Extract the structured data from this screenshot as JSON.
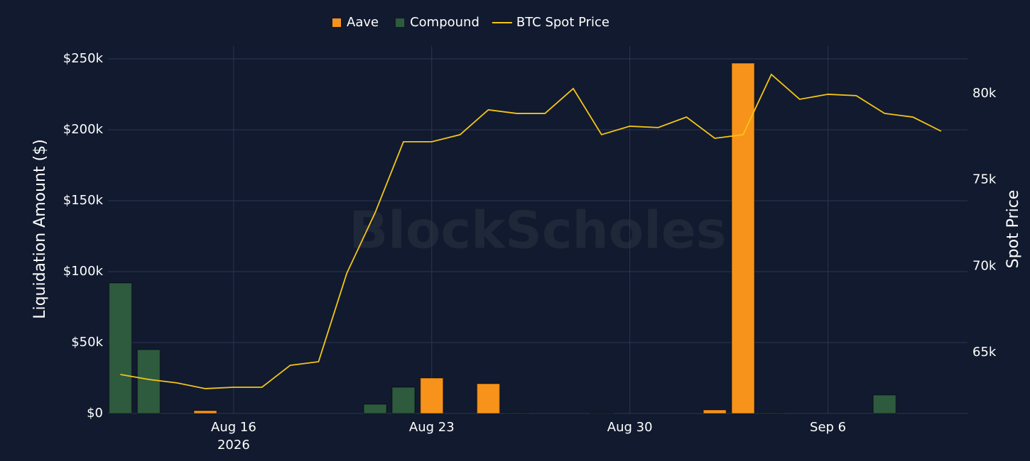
{
  "chart_data": {
    "type": "bar",
    "watermark": "BlockScholes",
    "y_label": "Liquidation Amount ($)",
    "y2_label": "Spot Price",
    "categories": [
      "2026-08-12",
      "2026-08-13",
      "2026-08-14",
      "2026-08-15",
      "2026-08-16",
      "2026-08-17",
      "2026-08-18",
      "2026-08-19",
      "2026-08-20",
      "2026-08-21",
      "2026-08-22",
      "2026-08-23",
      "2026-08-24",
      "2026-08-25",
      "2026-08-26",
      "2026-08-27",
      "2026-08-28",
      "2026-08-29",
      "2026-08-30",
      "2026-08-31",
      "2026-09-01",
      "2026-09-02",
      "2026-09-03",
      "2026-09-04",
      "2026-09-05",
      "2026-09-06",
      "2026-09-07",
      "2026-09-08"
    ],
    "series": [
      {
        "name": "Aave",
        "color": "#f7931a",
        "values": [
          0,
          0,
          0,
          2000,
          0,
          0,
          0,
          0,
          0,
          0,
          0,
          25000,
          0,
          21000,
          0,
          0,
          0,
          0,
          0,
          0,
          0,
          2500,
          247000,
          0,
          0,
          0,
          0,
          0
        ]
      },
      {
        "name": "Compound",
        "color": "#2e5b3e",
        "values": [
          92000,
          45000,
          0,
          0,
          0,
          0,
          0,
          0,
          0,
          6500,
          18500,
          0,
          0,
          0,
          500,
          0,
          0,
          300,
          0,
          0,
          0,
          0,
          0,
          500,
          0,
          0,
          0,
          13000
        ]
      },
      {
        "name": "BTC Spot Price",
        "color": "#f5c518",
        "type": "line",
        "axis": "y2",
        "x": [
          "2026-08-12",
          "2026-08-13",
          "2026-08-14",
          "2026-08-15",
          "2026-08-16",
          "2026-08-17",
          "2026-08-18",
          "2026-08-19",
          "2026-08-20",
          "2026-08-21",
          "2026-08-22",
          "2026-08-23",
          "2026-08-24",
          "2026-08-25",
          "2026-08-26",
          "2026-08-27",
          "2026-08-28",
          "2026-08-29",
          "2026-08-30",
          "2026-08-31",
          "2026-09-01",
          "2026-09-02",
          "2026-09-03",
          "2026-09-04",
          "2026-09-05",
          "2026-09-06",
          "2026-09-07",
          "2026-09-08",
          "2026-09-09",
          "2026-09-10"
        ],
        "values": [
          63730,
          63440,
          63240,
          62910,
          62990,
          62990,
          64260,
          64470,
          69600,
          73100,
          77210,
          77210,
          77620,
          79060,
          78850,
          78850,
          80290,
          77620,
          78110,
          78030,
          78640,
          77410,
          77620,
          81110,
          79670,
          79960,
          79880,
          78850,
          78640,
          77820
        ]
      }
    ],
    "ylim": [
      0,
      259000
    ],
    "yticks": [
      {
        "value": 0,
        "label": "$0"
      },
      {
        "value": 50000,
        "label": "$50k"
      },
      {
        "value": 100000,
        "label": "$100k"
      },
      {
        "value": 150000,
        "label": "$150k"
      },
      {
        "value": 200000,
        "label": "$200k"
      },
      {
        "value": 250000,
        "label": "$250k"
      }
    ],
    "y2lim": [
      61470,
      82750
    ],
    "y2ticks": [
      {
        "value": 65000,
        "label": "65k"
      },
      {
        "value": 70000,
        "label": "70k"
      },
      {
        "value": 75000,
        "label": "75k"
      },
      {
        "value": 80000,
        "label": "80k"
      }
    ],
    "xticks": [
      {
        "value": "2026-08-16",
        "label": "Aug 16"
      },
      {
        "value": "2026-08-23",
        "label": "Aug 23"
      },
      {
        "value": "2026-08-30",
        "label": "Aug 30"
      },
      {
        "value": "2026-09-06",
        "label": "Sep 6"
      }
    ],
    "x_year": "2026",
    "grid": true
  }
}
